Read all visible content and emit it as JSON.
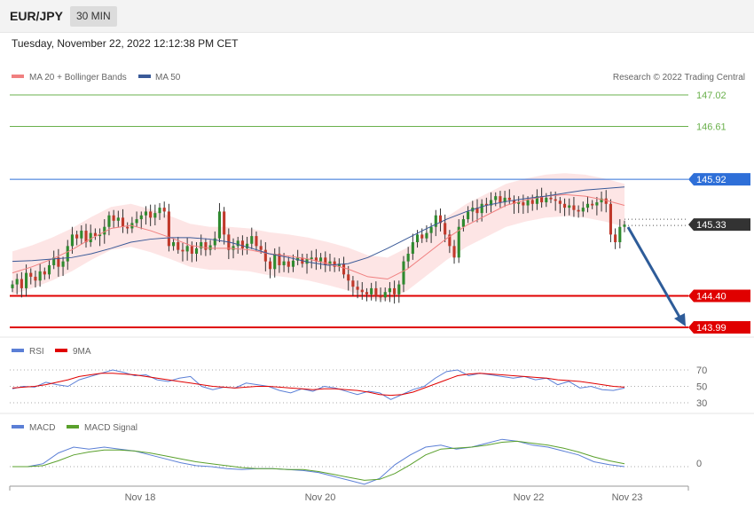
{
  "header": {
    "symbol": "EUR/JPY",
    "timeframe": "30 MIN",
    "timestamp": "Tuesday, November 22, 2022 12:12:38 PM CET"
  },
  "copyright": "Research © 2022 Trading Central",
  "colors": {
    "ma20": "#f08080",
    "ma50": "#3a5a98",
    "band": "#fde0e0",
    "up": "#2f8a2f",
    "down": "#c0392b",
    "resistance": "#6ab04c",
    "pivot": "#2e6fd8",
    "support": "#e00000",
    "arrow": "#2e5c99",
    "rsi": "#5b7fd6",
    "rsi_ma": "#e00000",
    "macd": "#5b7fd6",
    "macd_signal": "#5aa02c"
  },
  "legend": {
    "ma20": "MA 20 + Bollinger Bands",
    "ma50": "MA 50",
    "rsi": "RSI",
    "rsi_ma": "9MA",
    "macd": "MACD",
    "macd_signal": "MACD Signal"
  },
  "chart_data": [
    {
      "type": "candlestick",
      "ylim": [
        143.85,
        147.15
      ],
      "levels": [
        {
          "label": "147.02",
          "value": 147.02,
          "kind": "resistance"
        },
        {
          "label": "146.61",
          "value": 146.61,
          "kind": "resistance"
        },
        {
          "label": "145.92",
          "value": 145.92,
          "kind": "pivot"
        },
        {
          "label": "145.33",
          "value": 145.33,
          "kind": "last"
        },
        {
          "label": "144.40",
          "value": 144.4,
          "kind": "support"
        },
        {
          "label": "143.99",
          "value": 143.99,
          "kind": "support"
        }
      ],
      "x_ticks": [
        "Nov 18",
        "Nov 20",
        "Nov 22",
        "Nov 23"
      ],
      "close": [
        144.55,
        144.62,
        144.5,
        144.7,
        144.65,
        144.6,
        144.72,
        144.68,
        144.8,
        144.9,
        144.78,
        144.85,
        145.05,
        145.2,
        145.15,
        145.25,
        145.1,
        145.22,
        145.18,
        145.2,
        145.3,
        145.45,
        145.38,
        145.42,
        145.3,
        145.28,
        145.35,
        145.4,
        145.45,
        145.5,
        145.42,
        145.48,
        145.55,
        145.5,
        145.05,
        145.1,
        145.0,
        144.98,
        145.05,
        144.95,
        145.02,
        145.1,
        145.0,
        145.06,
        145.15,
        145.5,
        145.2,
        145.0,
        145.05,
        145.12,
        145.02,
        145.08,
        145.18,
        145.05,
        145.0,
        144.85,
        144.75,
        144.95,
        144.8,
        144.85,
        144.78,
        144.86,
        144.9,
        144.82,
        144.88,
        144.9,
        144.85,
        144.9,
        144.8,
        144.85,
        144.78,
        144.82,
        144.68,
        144.6,
        144.52,
        144.48,
        144.45,
        144.42,
        144.5,
        144.4,
        144.38,
        144.45,
        144.5,
        144.42,
        144.55,
        144.85,
        144.95,
        145.1,
        145.2,
        145.15,
        145.22,
        145.3,
        145.45,
        145.35,
        145.2,
        145.05,
        144.9,
        145.3,
        145.4,
        145.5,
        145.55,
        145.48,
        145.6,
        145.58,
        145.65,
        145.7,
        145.62,
        145.68,
        145.65,
        145.6,
        145.62,
        145.58,
        145.65,
        145.6,
        145.7,
        145.62,
        145.68,
        145.66,
        145.64,
        145.6,
        145.55,
        145.58,
        145.52,
        145.5,
        145.55,
        145.6,
        145.58,
        145.62,
        145.67,
        145.6,
        145.2,
        145.1,
        145.3,
        145.33
      ],
      "lines": {
        "ma50": [
          144.85,
          144.86,
          144.88,
          144.9,
          144.95,
          145.02,
          145.1,
          145.14,
          145.16,
          145.16,
          145.14,
          145.1,
          145.03,
          144.95,
          144.9,
          144.84,
          144.8,
          144.82,
          144.9,
          145.02,
          145.15,
          145.28,
          145.4,
          145.5,
          145.58,
          145.63,
          145.67,
          145.7,
          145.74,
          145.78,
          145.8,
          145.82
        ],
        "ma20": [
          144.7,
          144.78,
          144.88,
          145.0,
          145.15,
          145.28,
          145.32,
          145.25,
          145.16,
          145.06,
          145.02,
          145.02,
          145.0,
          144.95,
          144.92,
          144.88,
          144.82,
          144.75,
          144.65,
          144.62,
          144.75,
          144.95,
          145.15,
          145.32,
          145.45,
          145.58,
          145.65,
          145.7,
          145.72,
          145.7,
          145.65,
          145.58
        ]
      }
    },
    {
      "type": "line",
      "name": "RSI",
      "ylim": [
        20,
        80
      ],
      "y_ticks": [
        "70",
        "50",
        "30"
      ],
      "series": [
        {
          "name": "RSI",
          "values": [
            47,
            50,
            49,
            55,
            52,
            50,
            58,
            62,
            66,
            70,
            67,
            63,
            64,
            58,
            56,
            60,
            62,
            50,
            46,
            49,
            48,
            54,
            52,
            50,
            45,
            42,
            47,
            44,
            50,
            48,
            44,
            40,
            44,
            42,
            34,
            40,
            46,
            50,
            60,
            68,
            70,
            63,
            66,
            64,
            62,
            60,
            62,
            58,
            60,
            52,
            56,
            48,
            50,
            46,
            45,
            48
          ]
        },
        {
          "name": "9MA",
          "values": [
            48,
            49,
            50,
            52,
            55,
            58,
            62,
            64,
            66,
            66,
            65,
            64,
            62,
            60,
            58,
            56,
            54,
            52,
            50,
            49,
            48,
            49,
            50,
            50,
            49,
            48,
            47,
            46,
            47,
            47,
            46,
            45,
            43,
            40,
            39,
            40,
            43,
            48,
            53,
            58,
            63,
            65,
            66,
            65,
            64,
            63,
            62,
            61,
            60,
            58,
            57,
            56,
            54,
            52,
            50,
            49
          ]
        }
      ]
    },
    {
      "type": "line",
      "name": "MACD",
      "y_ticks": [
        "0"
      ],
      "series": [
        {
          "name": "MACD",
          "values": [
            0.0,
            0.0,
            0.03,
            0.14,
            0.2,
            0.18,
            0.2,
            0.18,
            0.16,
            0.12,
            0.08,
            0.04,
            0.01,
            0.0,
            -0.02,
            -0.03,
            -0.02,
            -0.02,
            -0.03,
            -0.04,
            -0.06,
            -0.1,
            -0.14,
            -0.18,
            -0.12,
            0.02,
            0.12,
            0.2,
            0.22,
            0.18,
            0.2,
            0.24,
            0.28,
            0.26,
            0.22,
            0.2,
            0.16,
            0.12,
            0.05,
            0.02,
            0.0
          ]
        },
        {
          "name": "MACD Signal",
          "values": [
            0.0,
            0.0,
            0.01,
            0.06,
            0.12,
            0.15,
            0.17,
            0.17,
            0.16,
            0.14,
            0.11,
            0.08,
            0.05,
            0.03,
            0.01,
            -0.01,
            -0.02,
            -0.02,
            -0.03,
            -0.03,
            -0.05,
            -0.08,
            -0.11,
            -0.14,
            -0.13,
            -0.07,
            0.02,
            0.12,
            0.18,
            0.19,
            0.2,
            0.22,
            0.25,
            0.26,
            0.24,
            0.22,
            0.19,
            0.15,
            0.1,
            0.06,
            0.03
          ]
        }
      ]
    }
  ]
}
